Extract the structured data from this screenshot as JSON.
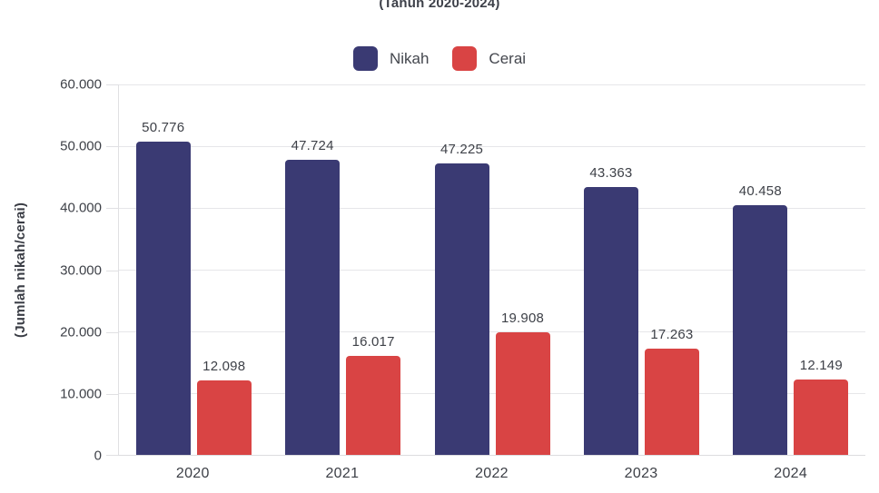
{
  "chart": {
    "subtitle": "(Tahun 2020-2024)",
    "y_axis_label": "(Jumlah nikah/cerai)"
  },
  "colors": {
    "nikah": "#3a3a73",
    "cerai": "#d94444",
    "gridline": "#e6e6e9",
    "text": "#3e4148"
  },
  "chart_data": {
    "type": "bar",
    "title": "(Tahun 2020-2024)",
    "xlabel": "",
    "ylabel": "(Jumlah nikah/cerai)",
    "categories": [
      "2020",
      "2021",
      "2022",
      "2023",
      "2024"
    ],
    "series": [
      {
        "name": "Nikah",
        "color": "#3a3a73",
        "values": [
          50776,
          47724,
          47225,
          43363,
          40458
        ],
        "labels": [
          "50.776",
          "47.724",
          "47.225",
          "43.363",
          "40.458"
        ]
      },
      {
        "name": "Cerai",
        "color": "#d94444",
        "values": [
          12098,
          16017,
          19908,
          17263,
          12149
        ],
        "labels": [
          "12.098",
          "16.017",
          "19.908",
          "17.263",
          "12.149"
        ]
      }
    ],
    "ylim": [
      0,
      60000
    ],
    "ytick_step": 10000,
    "ytick_labels_top_to_bottom": [
      "60.000",
      "50.000",
      "40.000",
      "30.000",
      "20.000",
      "10.000",
      "0"
    ],
    "grid": true,
    "legend_position": "top"
  }
}
